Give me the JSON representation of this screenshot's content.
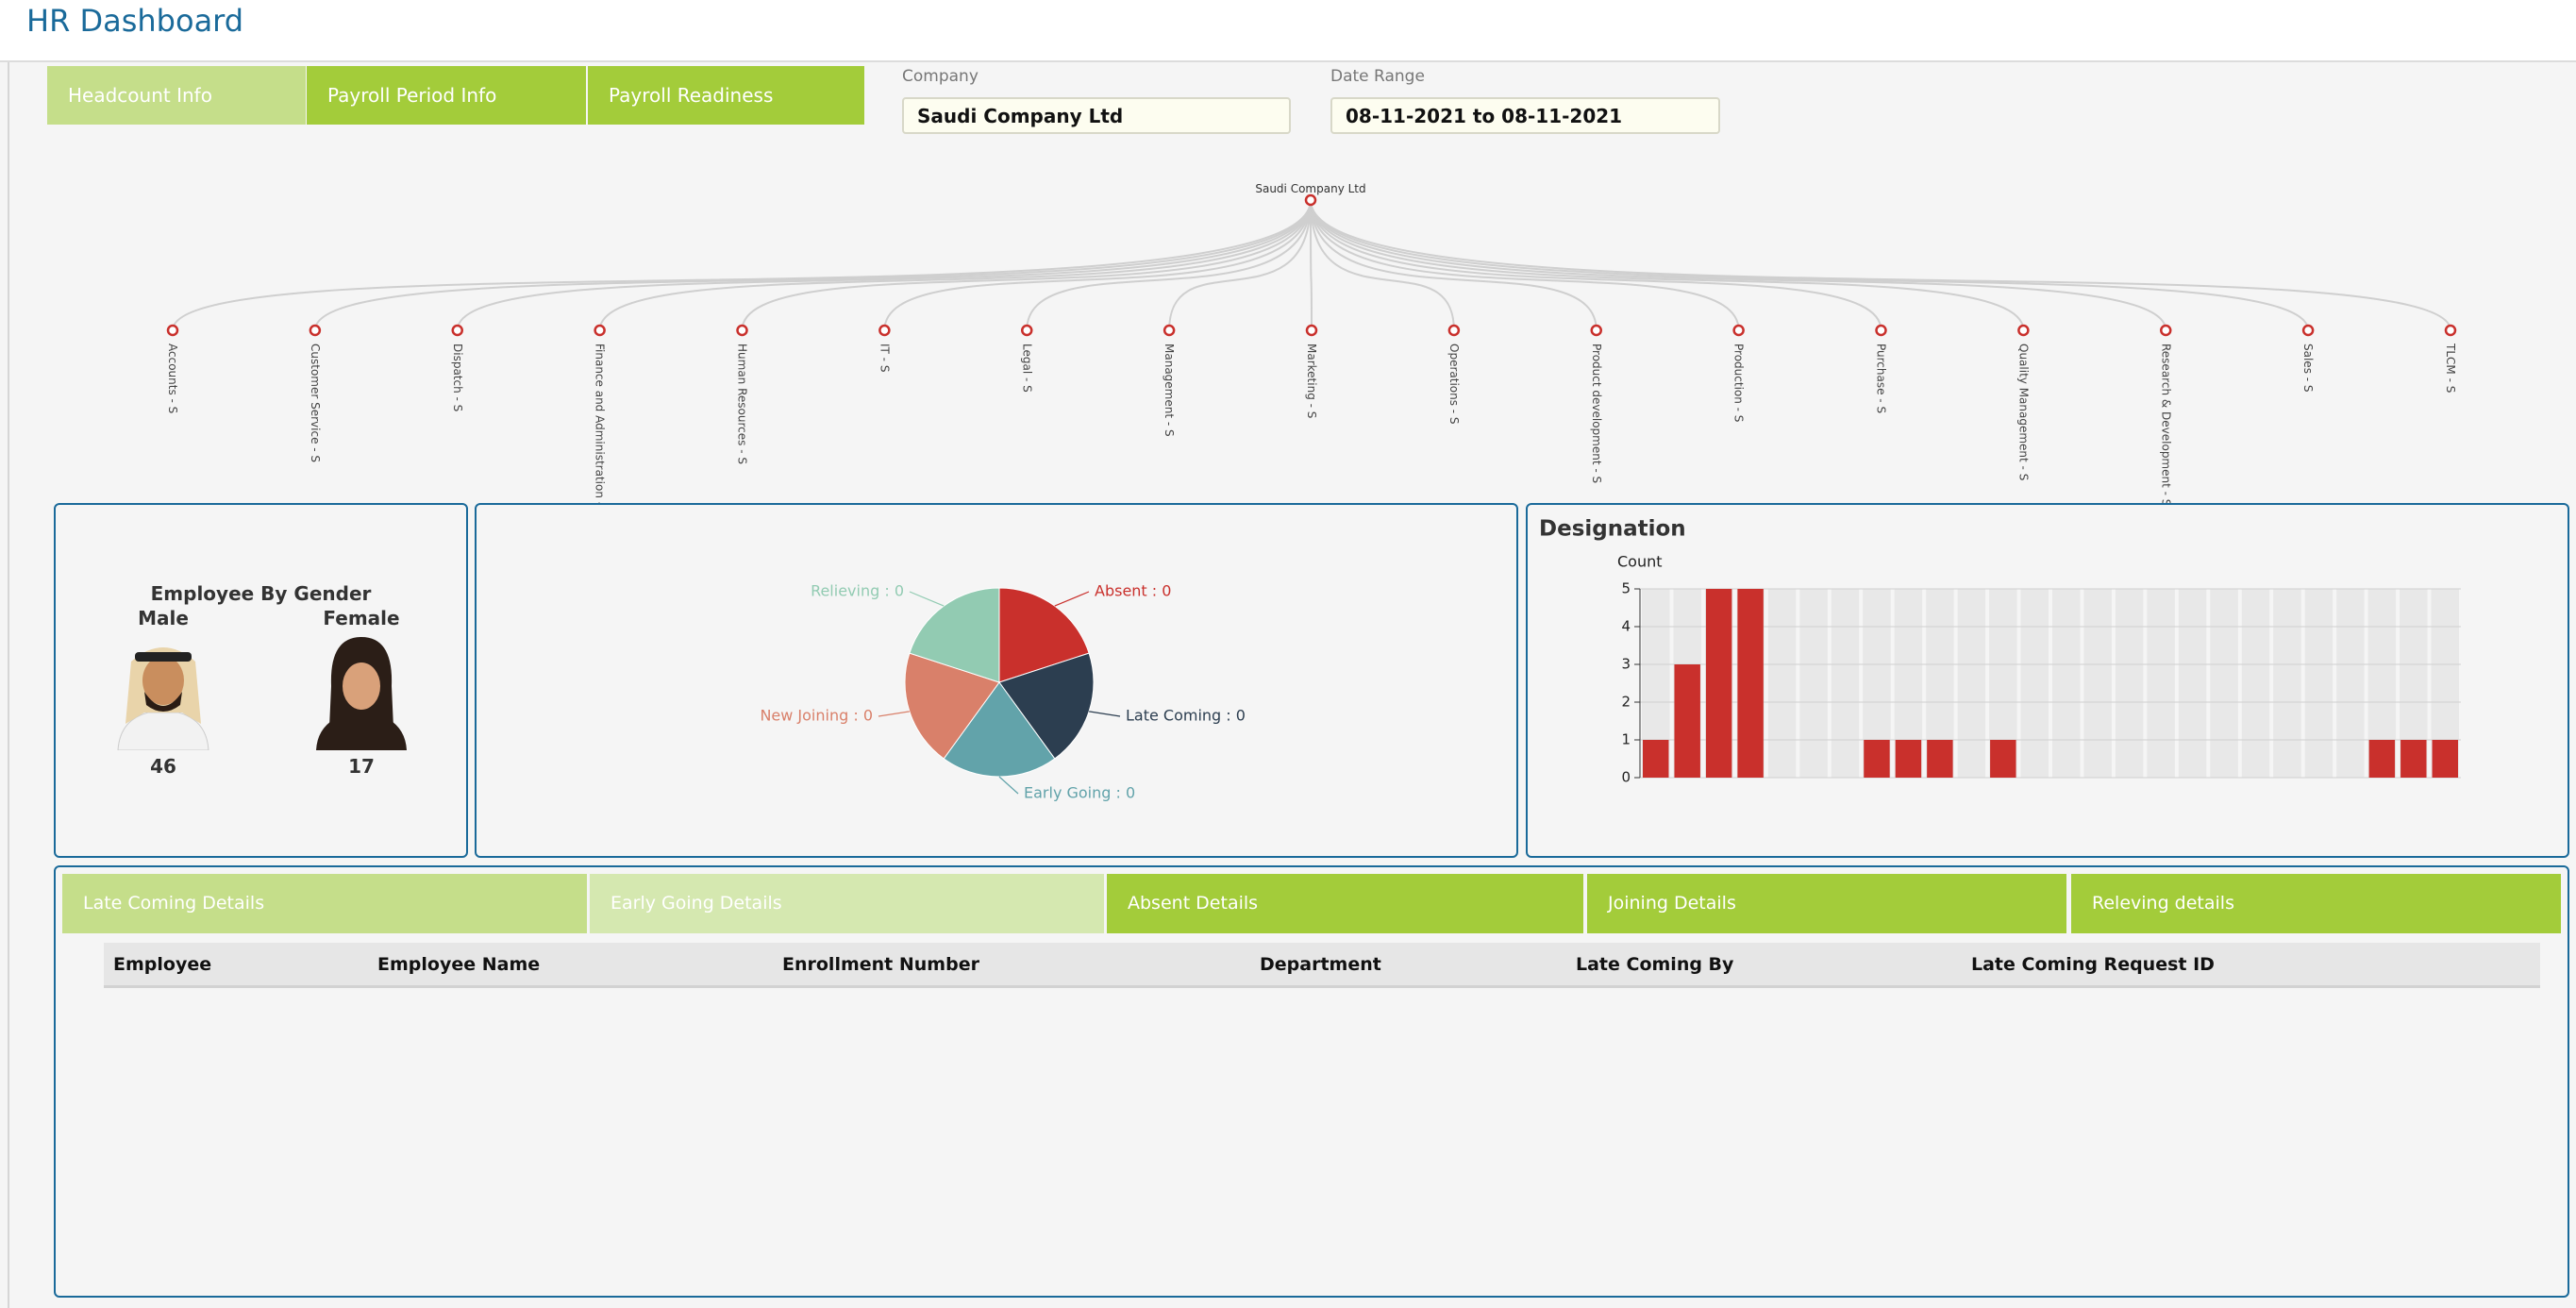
{
  "header": {
    "title": "HR Dashboard"
  },
  "tabs": [
    "Headcount Info",
    "Payroll Period Info",
    "Payroll Readiness"
  ],
  "filters": [
    {
      "label": "Company",
      "value": "Saudi Company Ltd"
    },
    {
      "label": "Date Range",
      "value": "08-11-2021 to 08-11-2021"
    }
  ],
  "tree": {
    "root": "Saudi Company Ltd",
    "children": [
      "Accounts - S",
      "Customer Service - S",
      "Dispatch - S",
      "Finance and Administration - S",
      "Human Resources - S",
      "IT - S",
      "Legal - S",
      "Management - S",
      "Marketing - S",
      "Operations - S",
      "Product development - S",
      "Production - S",
      "Purchase - S",
      "Quality Management - S",
      "Research & Development - S",
      "Sales - S",
      "TLCM - S"
    ]
  },
  "gender": {
    "title": "Employee By Gender",
    "male": {
      "label": "Male",
      "count": 46
    },
    "female": {
      "label": "Female",
      "count": 17
    }
  },
  "chart_data": [
    {
      "type": "pie",
      "labels": [
        "Absent : 0",
        "Late Coming : 0",
        "Early Going : 0",
        "New Joining : 0",
        "Relieving : 0"
      ],
      "values": [
        0,
        0,
        0,
        0,
        0
      ],
      "colors": [
        "#c9302c",
        "#2c3e50",
        "#62a3aa",
        "#d9806a",
        "#92cbb2"
      ]
    },
    {
      "type": "bar",
      "title": "Designation",
      "y_label": "Count",
      "categories": [
        null,
        null,
        null,
        null,
        null,
        null,
        null,
        null,
        null,
        null,
        null,
        null,
        null,
        null,
        null,
        null,
        null,
        null,
        null,
        null,
        null,
        null,
        null,
        null,
        null,
        null
      ],
      "values": [
        1,
        3,
        5,
        5,
        0,
        0,
        0,
        1,
        1,
        1,
        0,
        1,
        0,
        0,
        0,
        0,
        0,
        0,
        0,
        0,
        0,
        0,
        0,
        1,
        1,
        1
      ],
      "color": "#c9302c",
      "ylim": [
        0,
        5
      ],
      "yticks": [
        0,
        1,
        2,
        3,
        4,
        5
      ],
      "grid": true
    }
  ],
  "detail_tabs": [
    "Late Coming Details",
    "Early Going Details",
    "Absent Details",
    "Joining Details",
    "Releving details"
  ],
  "table": {
    "columns": [
      "Employee",
      "Employee Name",
      "Enrollment Number",
      "Department",
      "Late Coming By",
      "Late Coming Request ID"
    ]
  }
}
